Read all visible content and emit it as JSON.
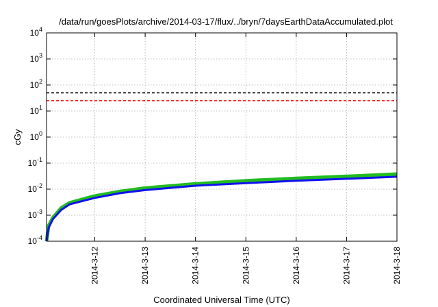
{
  "chart_data": {
    "type": "line",
    "title": "/data/run/goesPlots/archive/2014-03-17/flux/../bryn/7daysEarthDataAccumulated.plot",
    "xlabel": "Coordinated Universal Time (UTC)",
    "ylabel": "cGy",
    "yscale": "log",
    "ylim": [
      0.0001,
      10000
    ],
    "y_ticks": [
      {
        "base": "10",
        "exp": "-4",
        "value": 0.0001
      },
      {
        "base": "10",
        "exp": "-3",
        "value": 0.001
      },
      {
        "base": "10",
        "exp": "-2",
        "value": 0.01
      },
      {
        "base": "10",
        "exp": "-1",
        "value": 0.1
      },
      {
        "base": "10",
        "exp": "0",
        "value": 1
      },
      {
        "base": "10",
        "exp": "1",
        "value": 10
      },
      {
        "base": "10",
        "exp": "2",
        "value": 100
      },
      {
        "base": "10",
        "exp": "3",
        "value": 1000
      },
      {
        "base": "10",
        "exp": "4",
        "value": 10000
      }
    ],
    "xlim": [
      "2014-03-11 01:00",
      "2014-03-18 00:00"
    ],
    "x_ticks": [
      {
        "label": "2014-3-12",
        "date": "2014-03-12"
      },
      {
        "label": "2014-3-13",
        "date": "2014-03-13"
      },
      {
        "label": "2014-3-14",
        "date": "2014-03-14"
      },
      {
        "label": "2014-3-15",
        "date": "2014-03-15"
      },
      {
        "label": "2014-3-16",
        "date": "2014-03-16"
      },
      {
        "label": "2014-3-17",
        "date": "2014-03-17"
      },
      {
        "label": "2014-3-18",
        "date": "2014-03-18"
      }
    ],
    "grid": true,
    "thresholds": [
      {
        "value": 50,
        "color": "#000000",
        "style": "dashed"
      },
      {
        "value": 25,
        "color": "#ff0000",
        "style": "dashed"
      }
    ],
    "series": [
      {
        "color": "#22bb22",
        "x": [
          "2014-03-11 01:00",
          "2014-03-11 02:00",
          "2014-03-11 04:00",
          "2014-03-11 08:00",
          "2014-03-11 12:00",
          "2014-03-12 00:00",
          "2014-03-12 12:00",
          "2014-03-13 00:00",
          "2014-03-14 00:00",
          "2014-03-15 00:00",
          "2014-03-16 00:00",
          "2014-03-17 00:00",
          "2014-03-18 00:00"
        ],
        "values": [
          0.0001,
          0.0004,
          0.0008,
          0.0019,
          0.003,
          0.0055,
          0.0082,
          0.011,
          0.016,
          0.021,
          0.026,
          0.031,
          0.038
        ]
      },
      {
        "color": "#1111ee",
        "x": [
          "2014-03-11 01:00",
          "2014-03-11 02:00",
          "2014-03-11 04:00",
          "2014-03-11 08:00",
          "2014-03-11 12:00",
          "2014-03-12 00:00",
          "2014-03-12 12:00",
          "2014-03-13 00:00",
          "2014-03-14 00:00",
          "2014-03-15 00:00",
          "2014-03-16 00:00",
          "2014-03-17 00:00",
          "2014-03-18 00:00"
        ],
        "values": [
          0.0001,
          0.00033,
          0.0007,
          0.0016,
          0.0026,
          0.0046,
          0.007,
          0.0092,
          0.0135,
          0.017,
          0.021,
          0.025,
          0.03
        ]
      }
    ]
  }
}
